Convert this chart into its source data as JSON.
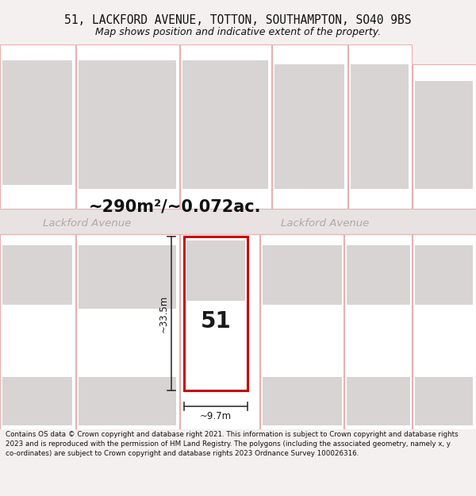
{
  "title_line1": "51, LACKFORD AVENUE, TOTTON, SOUTHAMPTON, SO40 9BS",
  "title_line2": "Map shows position and indicative extent of the property.",
  "area_label": "~290m²/~0.072ac.",
  "street_label_left": "Lackford Avenue",
  "street_label_right": "Lackford Avenue",
  "property_number": "51",
  "width_label": "~9.7m",
  "height_label": "~33.5m",
  "footer_text": "Contains OS data © Crown copyright and database right 2021. This information is subject to Crown copyright and database rights 2023 and is reproduced with the permission of HM Land Registry. The polygons (including the associated geometry, namely x, y co-ordinates) are subject to Crown copyright and database rights 2023 Ordnance Survey 100026316.",
  "fig_bg": "#f5f0f0",
  "map_bg": "#ffffff",
  "plot_outline_color": "#e8b0b0",
  "plot_fill": "#ffffff",
  "building_fill": "#d8d4d4",
  "road_fill": "#e8e2e2",
  "road_line_color": "#c0b8b8",
  "highlight_color": "#cc0000",
  "street_text_color": "#b0a8a8",
  "area_text_color": "#111111",
  "dim_color": "#333333",
  "title_fontsize": 10.5,
  "subtitle_fontsize": 9.0,
  "footer_fontsize": 6.3
}
